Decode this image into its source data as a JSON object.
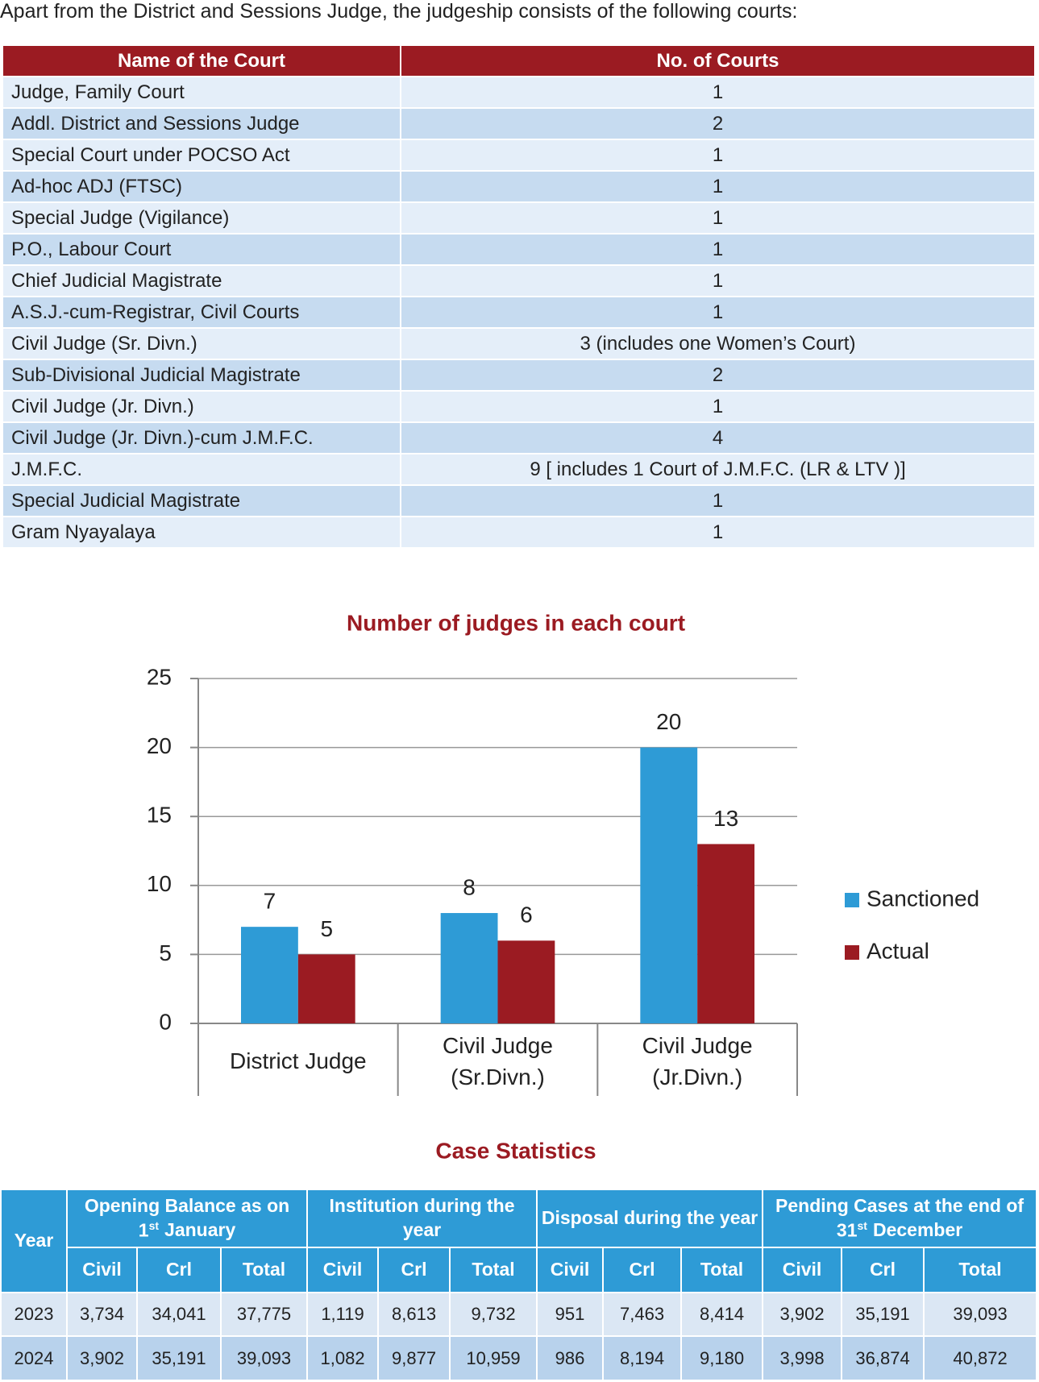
{
  "intro": "Apart from the District and Sessions Judge, the judgeship consists of the following courts:",
  "courts_table": {
    "header": [
      "Name of the Court",
      "No. of Courts"
    ],
    "rows": [
      [
        "Judge, Family Court",
        "1"
      ],
      [
        "Addl. District and Sessions Judge",
        "2"
      ],
      [
        "Special Court under POCSO Act",
        "1"
      ],
      [
        "Ad-hoc ADJ (FTSC)",
        "1"
      ],
      [
        "Special Judge (Vigilance)",
        "1"
      ],
      [
        "P.O., Labour Court",
        "1"
      ],
      [
        "Chief Judicial Magistrate",
        "1"
      ],
      [
        "A.S.J.-cum-Registrar, Civil Courts",
        "1"
      ],
      [
        "Civil Judge (Sr. Divn.)",
        "3 (includes one Women’s Court)"
      ],
      [
        "Sub-Divisional Judicial Magistrate",
        "2"
      ],
      [
        "Civil Judge (Jr. Divn.)",
        "1"
      ],
      [
        "Civil Judge (Jr. Divn.)-cum J.M.F.C.",
        "4"
      ],
      [
        "J.M.F.C.",
        "9 [ includes 1 Court of J.M.F.C. (LR & LTV )]"
      ],
      [
        "Special Judicial Magistrate",
        "1"
      ],
      [
        "Gram Nyayalaya",
        "1"
      ]
    ]
  },
  "chart_data": {
    "type": "bar",
    "title": "Number of judges in each court",
    "categories": [
      "District Judge",
      "Civil Judge (Sr.Divn.)",
      "Civil Judge (Jr.Divn.)"
    ],
    "series": [
      {
        "name": "Sanctioned",
        "color": "#2e9bd6",
        "values": [
          7,
          8,
          20
        ]
      },
      {
        "name": "Actual",
        "color": "#9b1b22",
        "values": [
          5,
          6,
          13
        ]
      }
    ],
    "ylim": [
      0,
      25
    ],
    "yticks": [
      0,
      5,
      10,
      15,
      20,
      25
    ],
    "grid": true,
    "legend": "right"
  },
  "case_statistics": {
    "title": "Case Statistics",
    "year_header": "Year",
    "groups": [
      {
        "text": "Opening Balance as on 1",
        "sup": "st",
        "text_after": "January"
      },
      {
        "text": "Institution during the year"
      },
      {
        "text": "Disposal during the year"
      },
      {
        "text": "Pending Cases at the end of 31",
        "sup": "st",
        "text_after": "December"
      }
    ],
    "subheaders": [
      "Civil",
      "Crl",
      "Total"
    ],
    "rows": [
      [
        "2023",
        "3,734",
        "34,041",
        "37,775",
        "1,119",
        "8,613",
        "9,732",
        "951",
        "7,463",
        "8,414",
        "3,902",
        "35,191",
        "39,093"
      ],
      [
        "2024",
        "3,902",
        "35,191",
        "39,093",
        "1,082",
        "9,877",
        "10,959",
        "986",
        "8,194",
        "9,180",
        "3,998",
        "36,874",
        "40,872"
      ]
    ]
  }
}
